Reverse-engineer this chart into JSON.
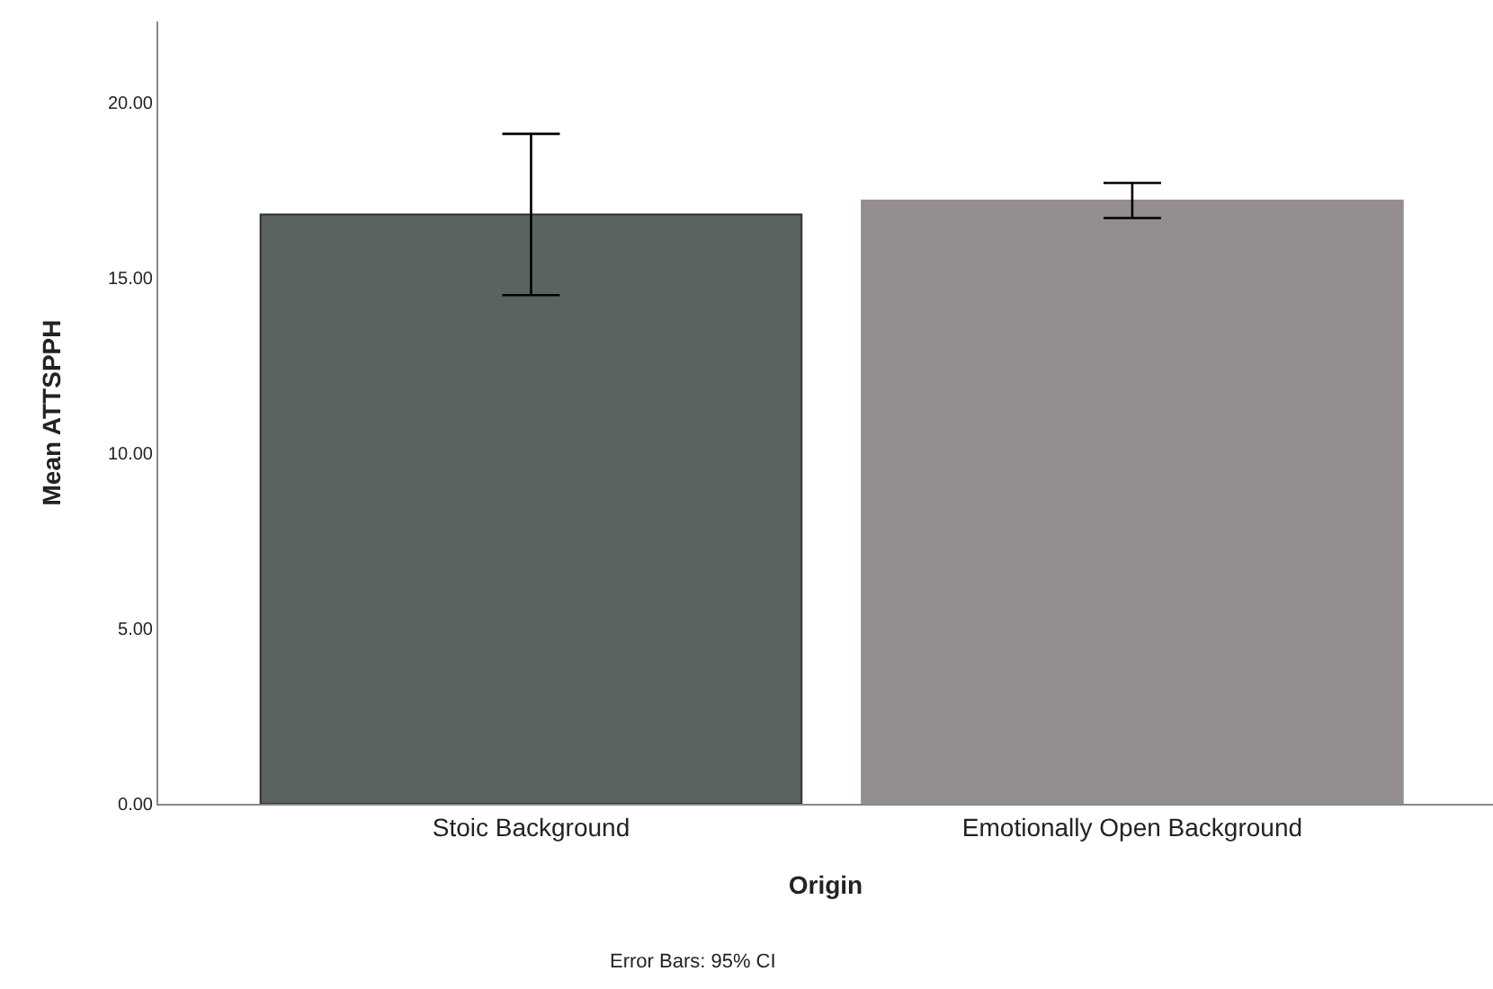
{
  "chart_data": {
    "type": "bar",
    "xlabel": "Origin",
    "ylabel": "Mean ATTSPPH",
    "categories": [
      "Stoic Background",
      "Emotionally Open Background"
    ],
    "values": [
      16.8,
      17.2
    ],
    "colors": [
      "#5a635d",
      "#948f8e"
    ],
    "errors": [
      [
        14.5,
        19.1
      ],
      [
        16.7,
        17.7
      ]
    ],
    "ylim": [
      0,
      22.3
    ],
    "yticks": [
      {
        "value": 0,
        "label": "0.00"
      },
      {
        "value": 5,
        "label": "5.00"
      },
      {
        "value": 10,
        "label": "10.00"
      },
      {
        "value": 15,
        "label": "15.00"
      },
      {
        "value": 20,
        "label": "20.00"
      }
    ],
    "annotations": [
      "Error Bars: 95% CI"
    ]
  }
}
